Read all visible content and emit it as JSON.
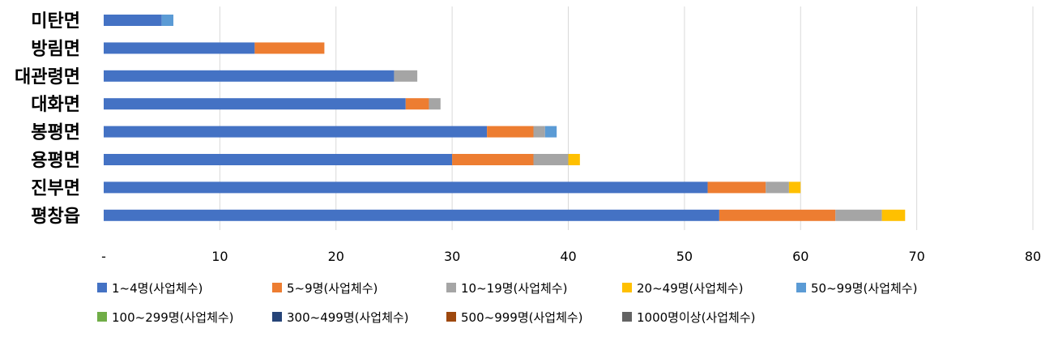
{
  "chart_data": {
    "type": "bar",
    "orientation": "horizontal",
    "stacked": true,
    "categories": [
      "미탄면",
      "방림면",
      "대관령면",
      "대화면",
      "봉평면",
      "용평면",
      "진부면",
      "평창읍"
    ],
    "series": [
      {
        "name": "1~4명(사업체수)",
        "color": "#4472C4",
        "values": [
          5,
          13,
          25,
          26,
          33,
          30,
          52,
          53
        ]
      },
      {
        "name": "5~9명(사업체수)",
        "color": "#ED7D31",
        "values": [
          0,
          6,
          0,
          2,
          4,
          7,
          5,
          10
        ]
      },
      {
        "name": "10~19명(사업체수)",
        "color": "#A5A5A5",
        "values": [
          0,
          0,
          2,
          1,
          1,
          3,
          2,
          4
        ]
      },
      {
        "name": "20~49명(사업체수)",
        "color": "#FFC000",
        "values": [
          0,
          0,
          0,
          0,
          0,
          1,
          1,
          2
        ]
      },
      {
        "name": "50~99명(사업체수)",
        "color": "#5B9BD5",
        "values": [
          1,
          0,
          0,
          0,
          1,
          0,
          0,
          0
        ]
      },
      {
        "name": "100~299명(사업체수)",
        "color": "#70AD47",
        "values": [
          0,
          0,
          0,
          0,
          0,
          0,
          0,
          0
        ]
      },
      {
        "name": "300~499명(사업체수)",
        "color": "#264478",
        "values": [
          0,
          0,
          0,
          0,
          0,
          0,
          0,
          0
        ]
      },
      {
        "name": "500~999명(사업체수)",
        "color": "#9E480E",
        "values": [
          0,
          0,
          0,
          0,
          0,
          0,
          0,
          0
        ]
      },
      {
        "name": "1000명이상(사업체수)",
        "color": "#636363",
        "values": [
          0,
          0,
          0,
          0,
          0,
          0,
          0,
          0
        ]
      }
    ],
    "xlim": [
      0,
      80
    ],
    "xticks": [
      0,
      10,
      20,
      30,
      40,
      50,
      60,
      70,
      80
    ],
    "xtick_labels": [
      "-",
      "10",
      "20",
      "30",
      "40",
      "50",
      "60",
      "70",
      "80"
    ],
    "grid": "vertical",
    "legend_position": "bottom",
    "title": "",
    "xlabel": "",
    "ylabel": ""
  }
}
